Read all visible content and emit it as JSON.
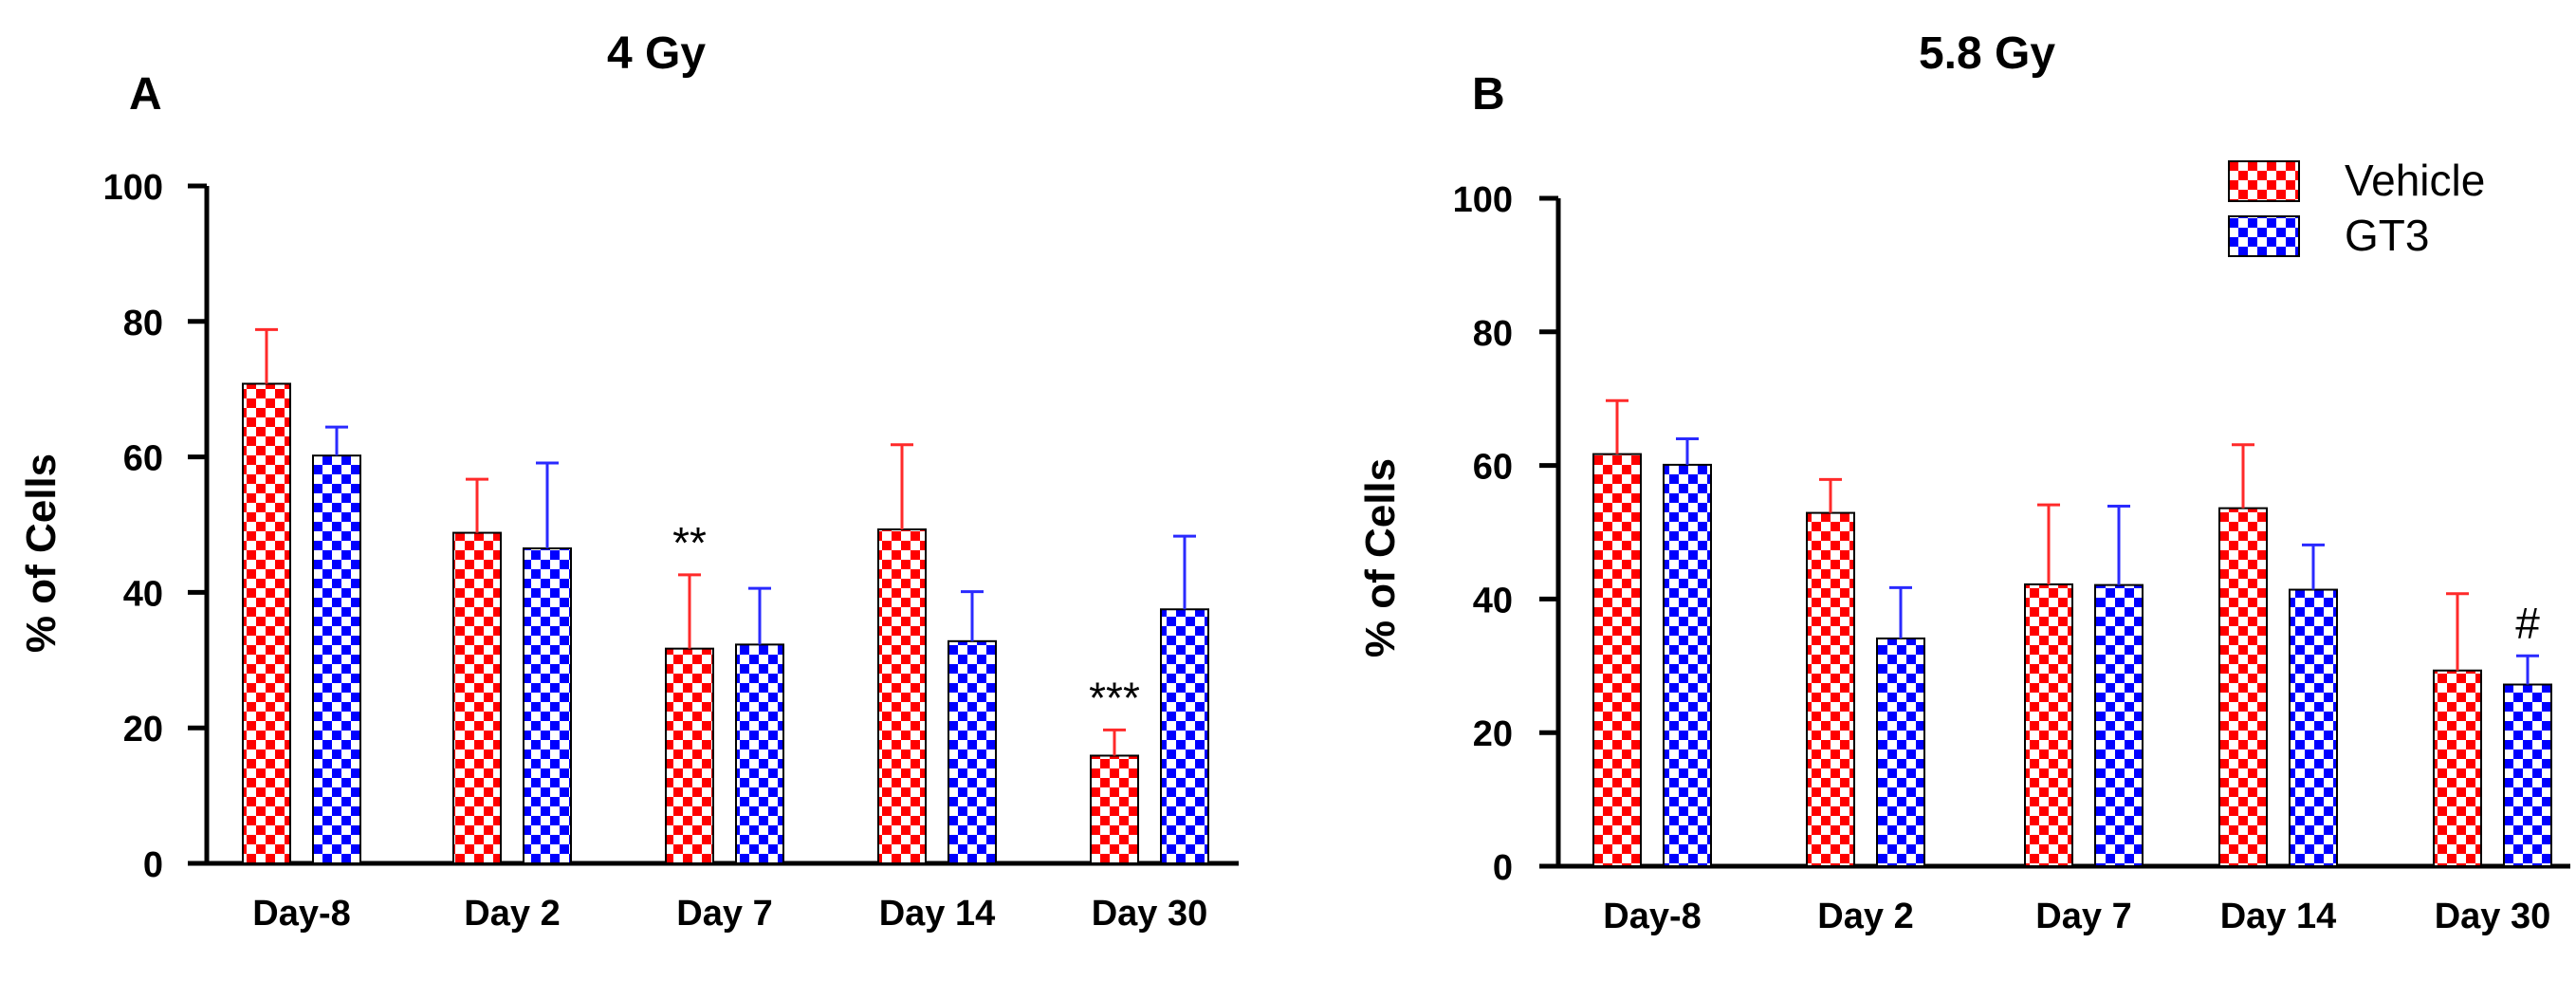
{
  "legend": [
    {
      "label": "Vehicle",
      "color": "#ff0000"
    },
    {
      "label": "GT3",
      "color": "#0000ff"
    }
  ],
  "chart_data": [
    {
      "type": "bar",
      "panel": "A",
      "title": "4 Gy",
      "xlabel": "",
      "ylabel": "% of Cells",
      "ylim": [
        0,
        100
      ],
      "yticks": [
        "0",
        "20",
        "40",
        "60",
        "80",
        "100"
      ],
      "categories": [
        "Day-8",
        "Day 2",
        "Day 7",
        "Day 14",
        "Day 30"
      ],
      "series": [
        {
          "name": "Vehicle",
          "values": [
            70.8,
            48.8,
            31.7,
            49.3,
            15.9
          ],
          "errors": [
            8.0,
            7.9,
            10.9,
            12.5,
            3.8
          ]
        },
        {
          "name": "GT3",
          "values": [
            60.2,
            46.5,
            32.3,
            32.8,
            37.5
          ],
          "errors": [
            4.2,
            12.6,
            8.3,
            7.3,
            10.8
          ]
        }
      ],
      "annotations": [
        {
          "category": "Day 7",
          "series": "Vehicle",
          "text": "**"
        },
        {
          "category": "Day 30",
          "series": "Vehicle",
          "text": "***"
        }
      ]
    },
    {
      "type": "bar",
      "panel": "B",
      "title": "5.8 Gy",
      "xlabel": "",
      "ylabel": "% of Cells",
      "ylim": [
        0,
        100
      ],
      "yticks": [
        "0",
        "20",
        "40",
        "60",
        "80",
        "100"
      ],
      "categories": [
        "Day-8",
        "Day 2",
        "Day 7",
        "Day 14",
        "Day 30"
      ],
      "series": [
        {
          "name": "Vehicle",
          "values": [
            61.7,
            52.9,
            42.2,
            53.6,
            29.3
          ],
          "errors": [
            8.0,
            5.0,
            11.9,
            9.5,
            11.5
          ]
        },
        {
          "name": "GT3",
          "values": [
            60.1,
            34.1,
            42.1,
            41.4,
            27.2
          ],
          "errors": [
            3.9,
            7.6,
            11.8,
            6.7,
            4.3
          ]
        }
      ],
      "annotations": [
        {
          "category": "Day 30",
          "series": "GT3",
          "text": "#"
        }
      ]
    }
  ]
}
